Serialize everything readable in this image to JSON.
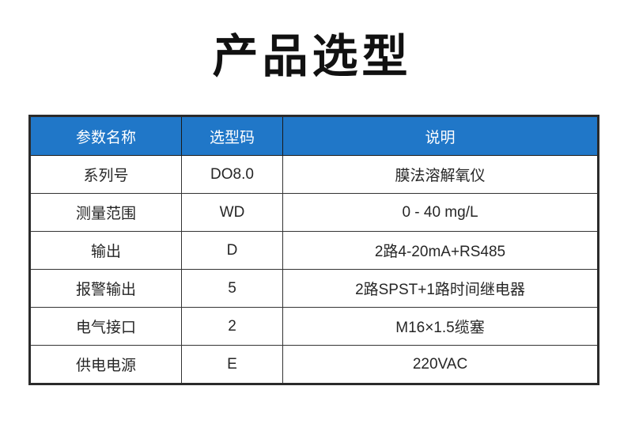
{
  "page": {
    "title": "产品选型"
  },
  "colors": {
    "header_bg": "#2077C8",
    "header_text": "#FFFFFF",
    "border_dark": "#2B2B2B",
    "body_text": "#262626",
    "page_bg": "#FFFFFF"
  },
  "table": {
    "headers": {
      "param": "参数名称",
      "code": "选型码",
      "desc": "说明"
    },
    "rows": [
      {
        "param": "系列号",
        "code": "DO8.0",
        "desc": "膜法溶解氧仪"
      },
      {
        "param": "测量范围",
        "code": "WD",
        "desc": "0 - 40 mg/L"
      },
      {
        "param": "输出",
        "code": "D",
        "desc": "2路4-20mA+RS485"
      },
      {
        "param": "报警输出",
        "code": "5",
        "desc": "2路SPST+1路时间继电器"
      },
      {
        "param": "电气接口",
        "code": "2",
        "desc": "M16×1.5缆塞"
      },
      {
        "param": "供电电源",
        "code": "E",
        "desc": "220VAC"
      }
    ]
  }
}
